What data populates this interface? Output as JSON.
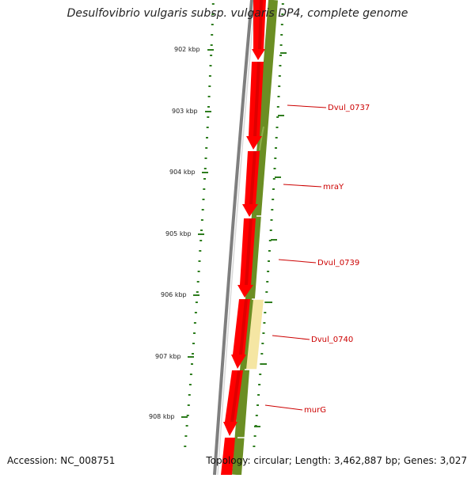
{
  "title": "Desulfovibrio vulgaris subsp. vulgaris DP4, complete genome",
  "footer": {
    "accession": "Accession: NC_008751",
    "summary": "Topology: circular; Length: 3,462,887 bp; Genes: 3,027"
  },
  "colors": {
    "cds_forward": "#ff0000",
    "cds_dark": "#c00000",
    "backbone": "#808080",
    "gc_track": "#6b8e23",
    "gc_highlight": "#f5e6a3",
    "tick": "#2e7d1e",
    "label": "#cc0000"
  },
  "scale_ticks": [
    {
      "label": "902 kbp"
    },
    {
      "label": "903 kbp"
    },
    {
      "label": "904 kbp"
    },
    {
      "label": "905 kbp"
    },
    {
      "label": "906 kbp"
    },
    {
      "label": "907 kbp"
    },
    {
      "label": "908 kbp"
    }
  ],
  "genes": [
    {
      "name": "Dvul_0737"
    },
    {
      "name": "mraY"
    },
    {
      "name": "Dvul_0739"
    },
    {
      "name": "Dvul_0740"
    },
    {
      "name": "murG"
    }
  ]
}
